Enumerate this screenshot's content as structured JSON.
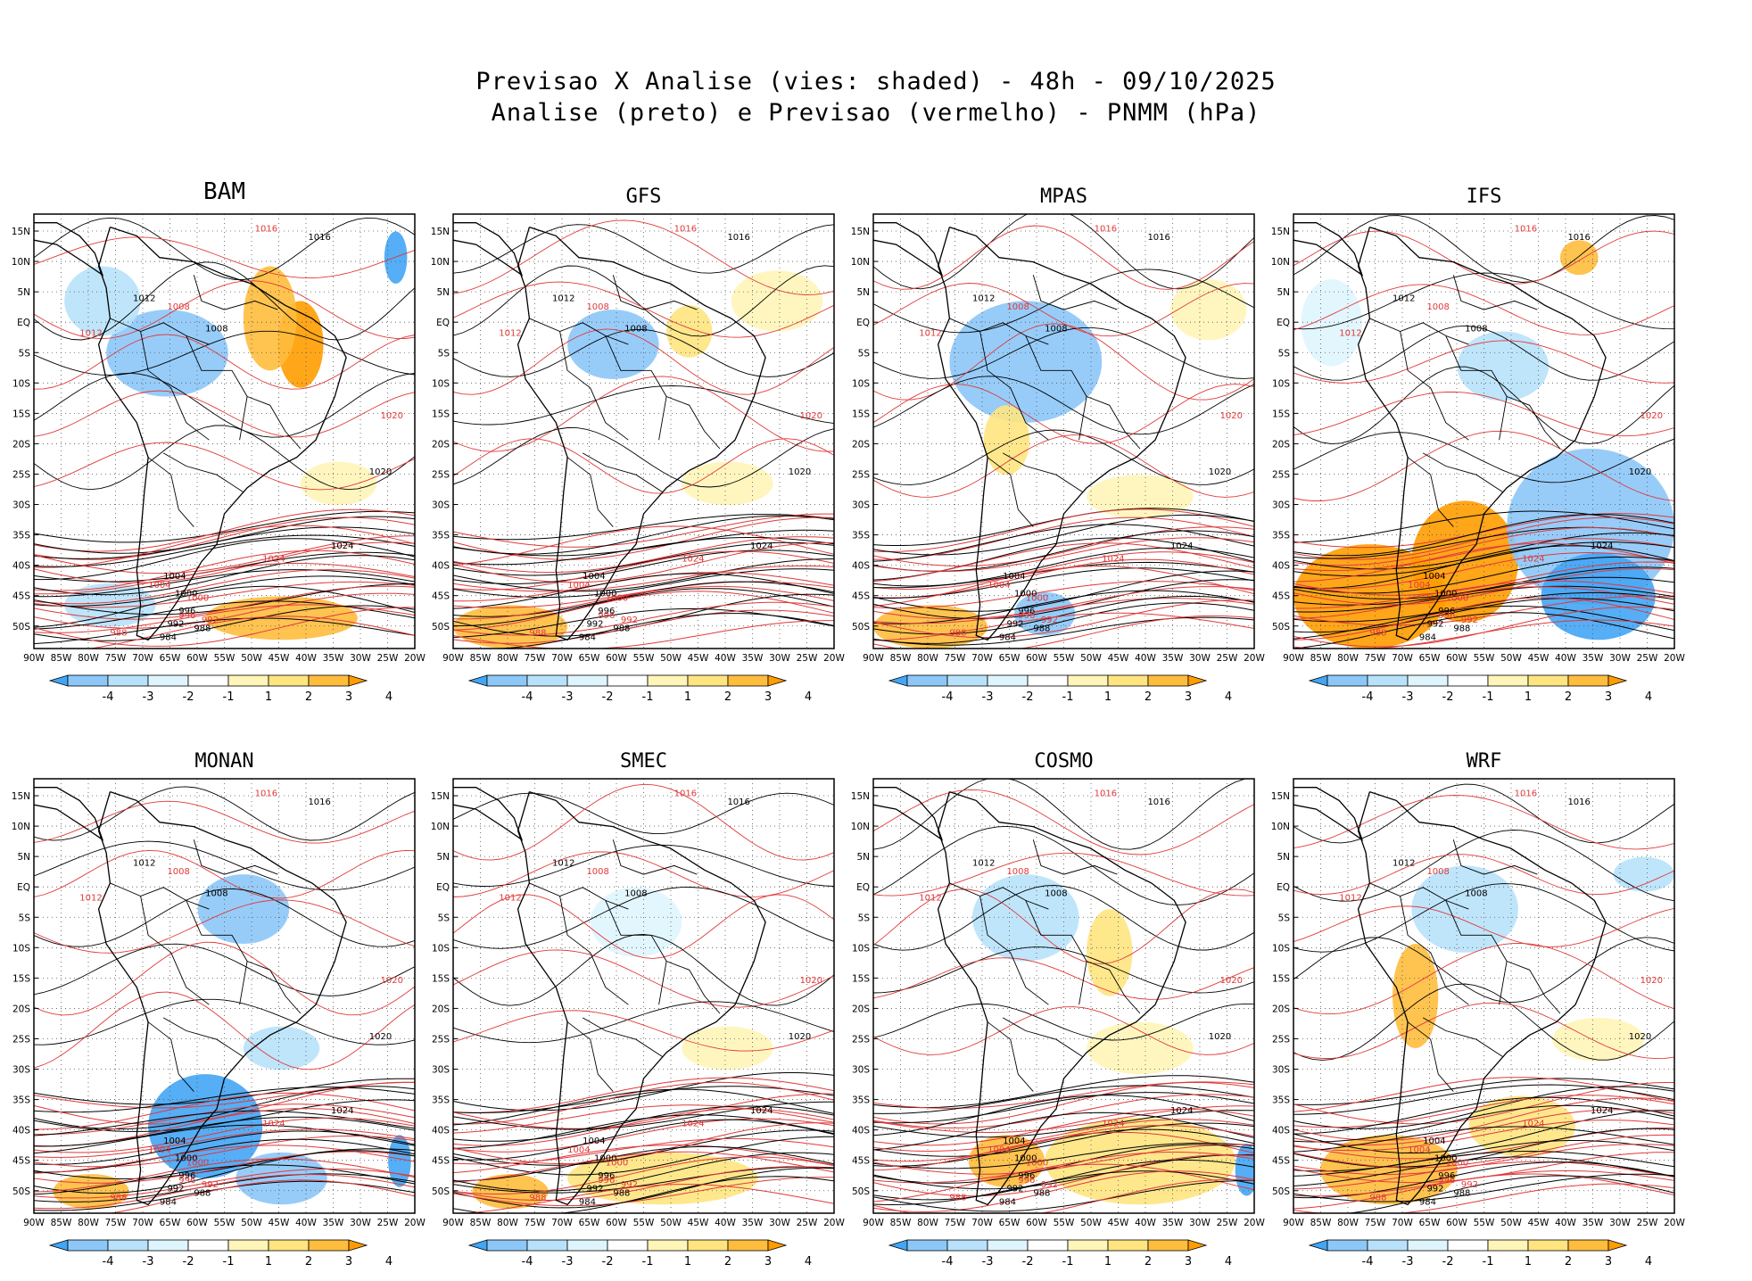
{
  "title": {
    "line1": "Previsao X Analise (vies: shaded) - 48h - 09/10/2025",
    "line2": "Analise (preto) e Previsao (vermelho) - PNMM (hPa)"
  },
  "panels": [
    {
      "name": "BAM"
    },
    {
      "name": "GFS"
    },
    {
      "name": "MPAS"
    },
    {
      "name": "IFS"
    },
    {
      "name": "MONAN"
    },
    {
      "name": "SMEC"
    },
    {
      "name": "COSMO"
    },
    {
      "name": "WRF"
    }
  ],
  "axes": {
    "lat_labels": [
      "15N",
      "10N",
      "5N",
      "EQ",
      "5S",
      "10S",
      "15S",
      "20S",
      "25S",
      "30S",
      "35S",
      "40S",
      "45S",
      "50S"
    ],
    "lon_labels": [
      "90W",
      "85W",
      "80W",
      "75W",
      "70W",
      "65W",
      "60W",
      "55W",
      "50W",
      "45W",
      "40W",
      "35W",
      "30W",
      "25W",
      "20W"
    ]
  },
  "colorbar": {
    "labels": [
      "-4",
      "-3",
      "-2",
      "-1",
      "1",
      "2",
      "3",
      "4"
    ],
    "colors": [
      "#42a5f5",
      "#8cc7f8",
      "#b8e2fb",
      "#dff5fe",
      "#ffffff",
      "#fff5b8",
      "#ffe480",
      "#ffbd3d",
      "#ff9c00"
    ]
  },
  "isobar_labels": {
    "analysis": [
      "1016",
      "1012",
      "1020",
      "1024",
      "1008",
      "1004",
      "1000",
      "996",
      "992",
      "988",
      "984"
    ],
    "forecast": [
      "1016",
      "1012",
      "1020",
      "1024",
      "1008",
      "1004",
      "1000",
      "996",
      "992",
      "988"
    ]
  },
  "colors": {
    "analysis": "#000000",
    "forecast": "#e03a3a",
    "grid": "#555555"
  }
}
